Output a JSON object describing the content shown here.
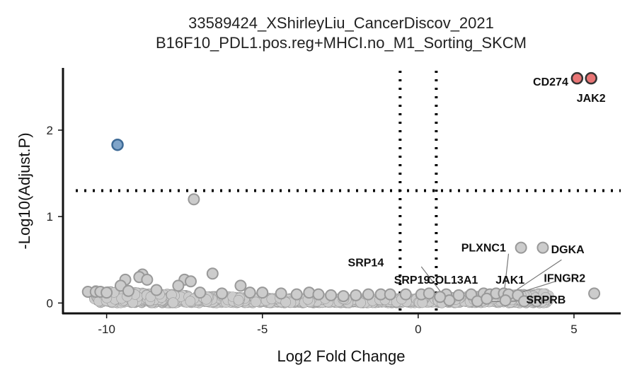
{
  "chart_data": {
    "type": "scatter",
    "title": "33589424_XShirleyLiu_CancerDiscov_2021",
    "subtitle": "B16F10_PDL1.pos.reg+MHCI.no_M1_Sorting_SKCM",
    "xlabel": "Log2 Fold Change",
    "ylabel": "-Log10(Adjust.P)",
    "xlim": [
      -11.4,
      6.5
    ],
    "ylim": [
      -0.12,
      2.72
    ],
    "xticks": [
      -10,
      -5,
      0,
      5
    ],
    "yticks": [
      0,
      1,
      2
    ],
    "xtick_labels": [
      "-10",
      "-5",
      "0",
      "5"
    ],
    "ytick_labels": [
      "0",
      "1",
      "2"
    ],
    "thresholds": {
      "x": [
        -0.58,
        0.58
      ],
      "y": 1.3
    },
    "grid": false,
    "legend": "none",
    "colors": {
      "up": "#e87575",
      "down": "#7fa4c9",
      "up_edge": "#333333",
      "down_edge": "#3d6a96",
      "ns": "#cccccc",
      "ns_edge": "#999999"
    },
    "points_up": [
      {
        "x": 5.1,
        "y": 2.6
      },
      {
        "x": 5.55,
        "y": 2.6
      }
    ],
    "points_down": [
      {
        "x": -9.65,
        "y": 1.83
      }
    ],
    "points_ns": [
      {
        "x": -7.2,
        "y": 1.2
      },
      {
        "x": 3.3,
        "y": 0.64
      },
      {
        "x": 4.0,
        "y": 0.64
      },
      {
        "x": -6.6,
        "y": 0.34
      },
      {
        "x": -8.85,
        "y": 0.33
      },
      {
        "x": -8.95,
        "y": 0.3
      },
      {
        "x": -9.4,
        "y": 0.27
      },
      {
        "x": -8.7,
        "y": 0.27
      },
      {
        "x": -7.5,
        "y": 0.27
      },
      {
        "x": -7.3,
        "y": 0.25
      },
      {
        "x": -5.7,
        "y": 0.2
      },
      {
        "x": -9.55,
        "y": 0.2
      },
      {
        "x": -7.7,
        "y": 0.2
      },
      {
        "x": -10.6,
        "y": 0.13
      },
      {
        "x": -10.35,
        "y": 0.13
      },
      {
        "x": -10.2,
        "y": 0.13
      },
      {
        "x": -9.3,
        "y": 0.14
      },
      {
        "x": -8.4,
        "y": 0.15
      },
      {
        "x": -7.0,
        "y": 0.12
      },
      {
        "x": -6.3,
        "y": 0.11
      },
      {
        "x": -5.4,
        "y": 0.12
      },
      {
        "x": -5.0,
        "y": 0.12
      },
      {
        "x": -4.4,
        "y": 0.11
      },
      {
        "x": -3.9,
        "y": 0.1
      },
      {
        "x": -3.5,
        "y": 0.12
      },
      {
        "x": -3.2,
        "y": 0.1
      },
      {
        "x": -2.8,
        "y": 0.09
      },
      {
        "x": -2.4,
        "y": 0.08
      },
      {
        "x": -2.0,
        "y": 0.09
      },
      {
        "x": -1.6,
        "y": 0.1
      },
      {
        "x": -1.2,
        "y": 0.1
      },
      {
        "x": -0.9,
        "y": 0.1
      },
      {
        "x": -0.4,
        "y": 0.1
      },
      {
        "x": 0.1,
        "y": 0.1
      },
      {
        "x": 0.35,
        "y": 0.11
      },
      {
        "x": 0.9,
        "y": 0.1
      },
      {
        "x": 1.3,
        "y": 0.09
      },
      {
        "x": 1.7,
        "y": 0.1
      },
      {
        "x": 2.1,
        "y": 0.11
      },
      {
        "x": 2.3,
        "y": 0.1
      },
      {
        "x": 2.5,
        "y": 0.11
      },
      {
        "x": 2.75,
        "y": 0.11
      },
      {
        "x": 2.9,
        "y": 0.1
      },
      {
        "x": 3.2,
        "y": 0.09
      },
      {
        "x": 2.8,
        "y": 0.03
      },
      {
        "x": 3.4,
        "y": 0.02
      },
      {
        "x": 3.8,
        "y": 0.02
      },
      {
        "x": 5.65,
        "y": 0.11
      },
      {
        "x": 1.0,
        "y": 0.03
      },
      {
        "x": 0.7,
        "y": 0.07
      },
      {
        "x": 1.9,
        "y": 0.02
      },
      {
        "x": 2.2,
        "y": 0.05
      },
      {
        "x": -10.0,
        "y": 0.12
      }
    ],
    "labels": [
      {
        "text": "CD274",
        "x": 4.25,
        "y": 2.55
      },
      {
        "text": "JAK2",
        "x": 5.55,
        "y": 2.36
      },
      {
        "text": "PLXNC1",
        "x": 2.1,
        "y": 0.63
      },
      {
        "text": "DGKA",
        "x": 4.8,
        "y": 0.61
      },
      {
        "text": "SRP14",
        "x": -1.68,
        "y": 0.46
      },
      {
        "text": "SRP19",
        "x": -0.2,
        "y": 0.26
      },
      {
        "text": "COL13A1",
        "x": 1.1,
        "y": 0.26
      },
      {
        "text": "JAK1",
        "x": 2.95,
        "y": 0.26
      },
      {
        "text": "IFNGR2",
        "x": 4.7,
        "y": 0.28
      },
      {
        "text": "SRPRB",
        "x": 4.1,
        "y": 0.03
      }
    ],
    "leaders": [
      {
        "x1": 0.1,
        "y1": 0.42,
        "x2": 1.0,
        "y2": 0.0
      },
      {
        "x1": 2.9,
        "y1": 0.57,
        "x2": 2.75,
        "y2": 0.09
      },
      {
        "x1": 4.6,
        "y1": 0.5,
        "x2": 2.9,
        "y2": 0.09
      },
      {
        "x1": 4.4,
        "y1": 0.25,
        "x2": 3.0,
        "y2": 0.09
      },
      {
        "x1": 4.0,
        "y1": 0.03,
        "x2": 1.9,
        "y2": 0.01
      }
    ]
  }
}
